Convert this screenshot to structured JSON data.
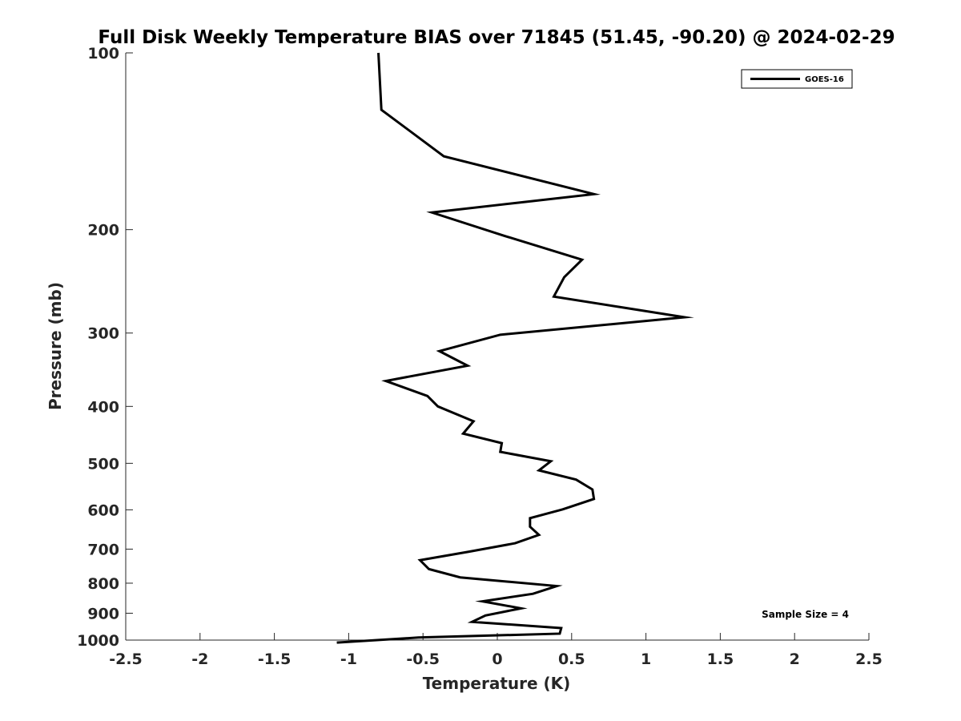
{
  "chart_data": {
    "type": "line",
    "title": "Full Disk Weekly Temperature BIAS over 71845 (51.45, -90.20) @ 2024-02-29",
    "xlabel": "Temperature (K)",
    "ylabel": "Pressure (mb)",
    "xlim": [
      -2.5,
      2.5
    ],
    "ylim": [
      100,
      1000
    ],
    "y_scale": "log",
    "y_reversed": true,
    "grid": false,
    "legend_position": "top-right",
    "x_ticks": [
      -2.5,
      -2,
      -1.5,
      -1,
      -0.5,
      0,
      0.5,
      1,
      1.5,
      2,
      2.5
    ],
    "x_tick_labels": [
      "-2.5",
      "-2",
      "-1.5",
      "-1",
      "-0.5",
      "0",
      "0.5",
      "1",
      "1.5",
      "2",
      "2.5"
    ],
    "y_ticks": [
      100,
      200,
      300,
      400,
      500,
      600,
      700,
      800,
      900,
      1000
    ],
    "y_tick_labels": [
      "100",
      "200",
      "300",
      "400",
      "500",
      "600",
      "700",
      "800",
      "900",
      "1000"
    ],
    "series": [
      {
        "name": "GOES-16",
        "color": "#000000",
        "points": [
          [
            -0.8,
            100
          ],
          [
            -0.78,
            125
          ],
          [
            -0.36,
            150
          ],
          [
            0.65,
            174
          ],
          [
            -0.44,
            187
          ],
          [
            0.05,
            205
          ],
          [
            0.57,
            225
          ],
          [
            0.45,
            241
          ],
          [
            0.38,
            260
          ],
          [
            1.26,
            282
          ],
          [
            0.02,
            302
          ],
          [
            -0.39,
            322
          ],
          [
            -0.2,
            341
          ],
          [
            -0.75,
            362
          ],
          [
            -0.47,
            384
          ],
          [
            -0.4,
            400
          ],
          [
            -0.16,
            424
          ],
          [
            -0.23,
            445
          ],
          [
            0.03,
            462
          ],
          [
            0.02,
            478
          ],
          [
            0.36,
            496
          ],
          [
            0.28,
            514
          ],
          [
            0.53,
            533
          ],
          [
            0.64,
            554
          ],
          [
            0.65,
            575
          ],
          [
            0.44,
            599
          ],
          [
            0.22,
            620
          ],
          [
            0.22,
            641
          ],
          [
            0.28,
            662
          ],
          [
            0.12,
            684
          ],
          [
            -0.19,
            707
          ],
          [
            -0.52,
            731
          ],
          [
            -0.46,
            757
          ],
          [
            -0.25,
            782
          ],
          [
            0.4,
            809
          ],
          [
            0.24,
            834
          ],
          [
            -0.1,
            859
          ],
          [
            0.16,
            883
          ],
          [
            -0.08,
            908
          ],
          [
            -0.17,
            931
          ],
          [
            0.43,
            954
          ],
          [
            0.42,
            975
          ],
          [
            -0.53,
            990
          ],
          [
            -1.08,
            1010
          ]
        ]
      }
    ],
    "annotations": [
      {
        "text": "Sample Size = 4",
        "position": "bottom-right"
      }
    ]
  }
}
